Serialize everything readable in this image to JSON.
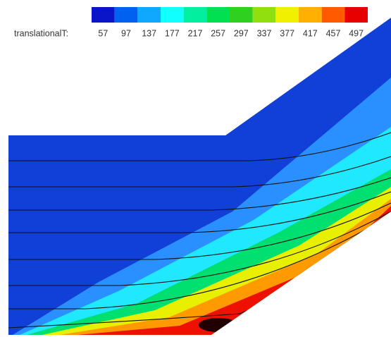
{
  "colorbar": {
    "label": "translationalT:",
    "levels": [
      57,
      97,
      137,
      177,
      217,
      257,
      297,
      337,
      377,
      417,
      457,
      497
    ],
    "colors": [
      "#0a14c8",
      "#0060f0",
      "#10a8ff",
      "#10ffff",
      "#00f0a0",
      "#00e050",
      "#30d020",
      "#90e010",
      "#f0f000",
      "#ffb000",
      "#ff5a00",
      "#e80000"
    ]
  }
}
